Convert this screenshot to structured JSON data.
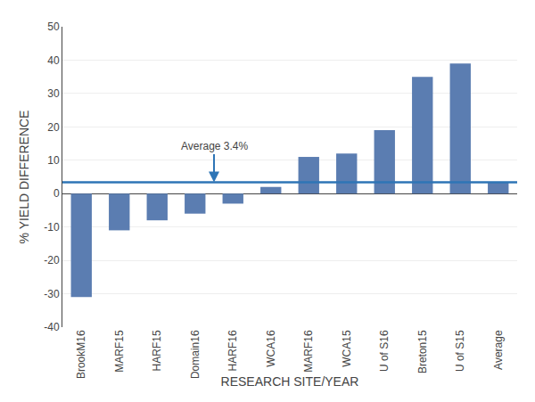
{
  "chart_data": {
    "type": "bar",
    "categories": [
      "BrookM16",
      "MARF15",
      "HARF15",
      "Domain16",
      "HARF16",
      "WCA16",
      "MARF16",
      "WCA15",
      "U of S16",
      "Breton15",
      "U of S15",
      "Average"
    ],
    "values": [
      -31,
      -11,
      -8,
      -6,
      -3,
      2,
      11,
      12,
      19,
      35,
      39,
      3.4
    ],
    "color": "#5b7db1",
    "average_line": {
      "value": 3.4,
      "color": "#2e75b6"
    },
    "annotations": [
      "Average 3.4%"
    ],
    "xlabel": "RESEARCH SITE/YEAR",
    "ylabel": "% YIELD DIFFERENCE",
    "ylim": [
      -40,
      50
    ],
    "yticks": [
      -40,
      -30,
      -20,
      -10,
      0,
      10,
      20,
      30,
      40,
      50
    ],
    "grid": true
  }
}
